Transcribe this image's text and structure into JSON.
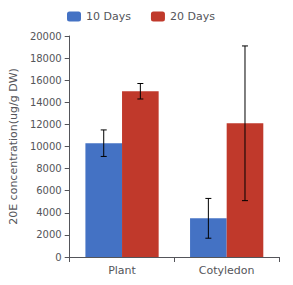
{
  "chart_data": {
    "type": "bar",
    "ylabel": "20E concentration(ug/g DW)",
    "categories": [
      "Plant",
      "Cotyledon"
    ],
    "series": [
      {
        "name": "10 Days",
        "color": "#4472C4",
        "values": [
          10300,
          3500
        ],
        "errors": [
          1200,
          1800
        ]
      },
      {
        "name": "20 Days",
        "color": "#C0392B",
        "values": [
          15000,
          12100
        ],
        "errors": [
          700,
          7000
        ]
      }
    ],
    "ylim": [
      0,
      20000
    ],
    "yticks": [
      0,
      2000,
      4000,
      6000,
      8000,
      10000,
      12000,
      14000,
      16000,
      18000,
      20000
    ],
    "grid": false,
    "legend": "top"
  }
}
